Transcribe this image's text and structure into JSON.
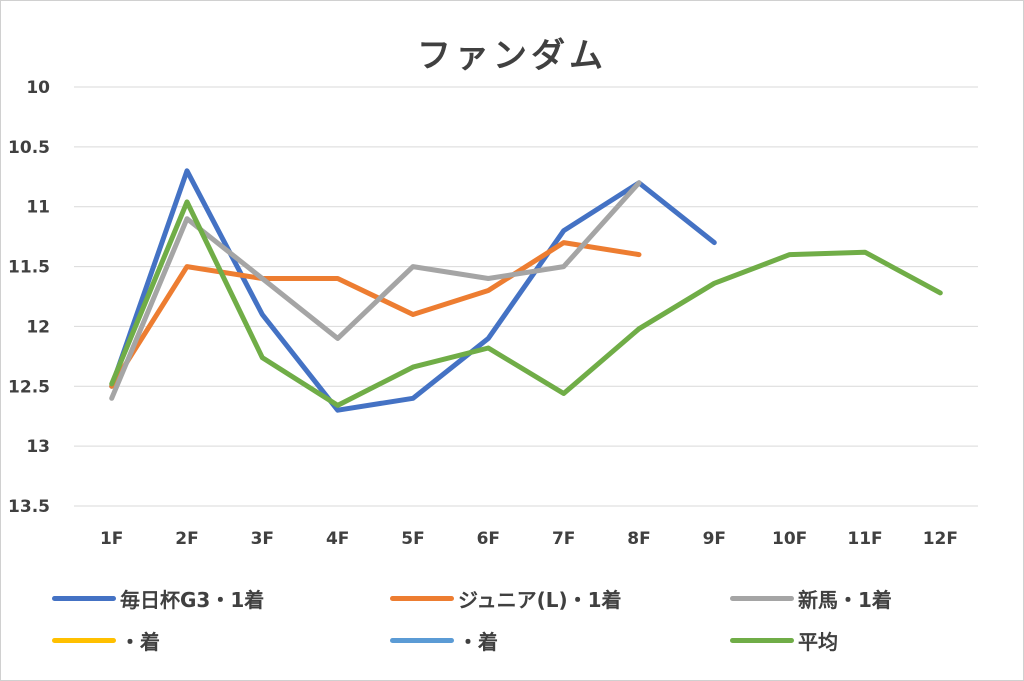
{
  "chart_data": {
    "type": "line",
    "title": "ファンダム",
    "categories": [
      "1F",
      "2F",
      "3F",
      "4F",
      "5F",
      "6F",
      "7F",
      "8F",
      "9F",
      "10F",
      "11F",
      "12F"
    ],
    "y_ticks": [
      "10",
      "10.5",
      "11",
      "11.5",
      "12",
      "12.5",
      "13",
      "13.5"
    ],
    "ylim": [
      10,
      13.5
    ],
    "y_inverted": true,
    "grid": true,
    "legend_position": "bottom",
    "series": [
      {
        "name": "毎日杯G3・1着",
        "color": "#4472C4",
        "values": [
          12.5,
          10.7,
          11.9,
          12.7,
          12.6,
          12.1,
          11.2,
          10.8,
          11.3,
          null,
          null,
          null
        ]
      },
      {
        "name": "ジュニア(L)・1着",
        "color": "#ED7D31",
        "values": [
          12.5,
          11.5,
          11.6,
          11.6,
          11.9,
          11.7,
          11.3,
          11.4,
          null,
          null,
          null,
          null
        ]
      },
      {
        "name": "新馬・1着",
        "color": "#A5A5A5",
        "values": [
          12.6,
          11.1,
          11.6,
          12.1,
          11.5,
          11.6,
          11.5,
          10.8,
          null,
          null,
          null,
          null
        ]
      },
      {
        "name": "・着",
        "color": "#FFC000",
        "values": [
          null,
          null,
          null,
          null,
          null,
          null,
          null,
          null,
          null,
          null,
          null,
          null
        ]
      },
      {
        "name": "・着",
        "color": "#5B9BD5",
        "values": [
          null,
          null,
          null,
          null,
          null,
          null,
          null,
          null,
          null,
          null,
          null,
          null
        ]
      },
      {
        "name": "平均",
        "color": "#70AD47",
        "values": [
          12.48,
          10.96,
          12.26,
          12.66,
          12.34,
          12.18,
          12.56,
          12.02,
          11.64,
          11.4,
          11.38,
          11.72
        ]
      }
    ]
  }
}
